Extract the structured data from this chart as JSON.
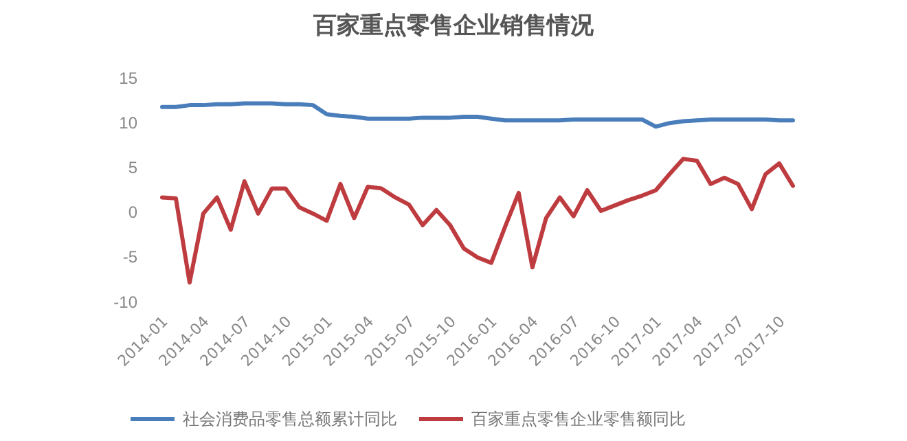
{
  "chart_data": {
    "type": "line",
    "title": "百家重点零售企业销售情况",
    "categories": [
      "2014-01",
      null,
      null,
      "2014-04",
      null,
      null,
      "2014-07",
      null,
      null,
      "2014-10",
      null,
      null,
      "2015-01",
      null,
      null,
      "2015-04",
      null,
      null,
      "2015-07",
      null,
      null,
      "2015-10",
      null,
      null,
      "2016-01",
      null,
      null,
      "2016-04",
      null,
      null,
      "2016-07",
      null,
      null,
      "2016-10",
      null,
      null,
      "2017-01",
      null,
      null,
      "2017-04",
      null,
      null,
      "2017-07",
      null,
      null,
      "2017-10",
      null
    ],
    "series": [
      {
        "name": "社会消费品零售总额累计同比",
        "color": "#4a7ebb",
        "values": [
          11.8,
          11.8,
          12.0,
          12.0,
          12.1,
          12.1,
          12.2,
          12.2,
          12.2,
          12.1,
          12.1,
          12.0,
          11.0,
          10.8,
          10.7,
          10.5,
          10.5,
          10.5,
          10.5,
          10.6,
          10.6,
          10.6,
          10.7,
          10.7,
          10.5,
          10.3,
          10.3,
          10.3,
          10.3,
          10.3,
          10.4,
          10.4,
          10.4,
          10.4,
          10.4,
          10.4,
          9.6,
          10.0,
          10.2,
          10.3,
          10.4,
          10.4,
          10.4,
          10.4,
          10.4,
          10.3,
          10.3
        ]
      },
      {
        "name": "百家重点零售企业零售额同比",
        "color": "#be3b3f",
        "values": [
          1.7,
          1.6,
          -7.8,
          -0.1,
          1.7,
          -1.9,
          3.5,
          -0.1,
          2.7,
          2.7,
          0.6,
          -0.1,
          -0.9,
          3.2,
          -0.6,
          2.9,
          2.7,
          1.7,
          0.9,
          -1.4,
          0.3,
          -1.4,
          -4.0,
          -5.0,
          -5.6,
          -1.6,
          2.2,
          -6.1,
          -0.6,
          1.7,
          -0.4,
          2.5,
          0.2,
          0.8,
          1.4,
          1.9,
          2.5,
          4.3,
          6.0,
          5.8,
          3.2,
          3.9,
          3.2,
          0.4,
          4.3,
          5.5,
          3.0
        ]
      }
    ],
    "ylim": [
      -10,
      15
    ],
    "yticks": [
      -10,
      -5,
      0,
      5,
      10,
      15
    ],
    "legend": "bottom"
  }
}
